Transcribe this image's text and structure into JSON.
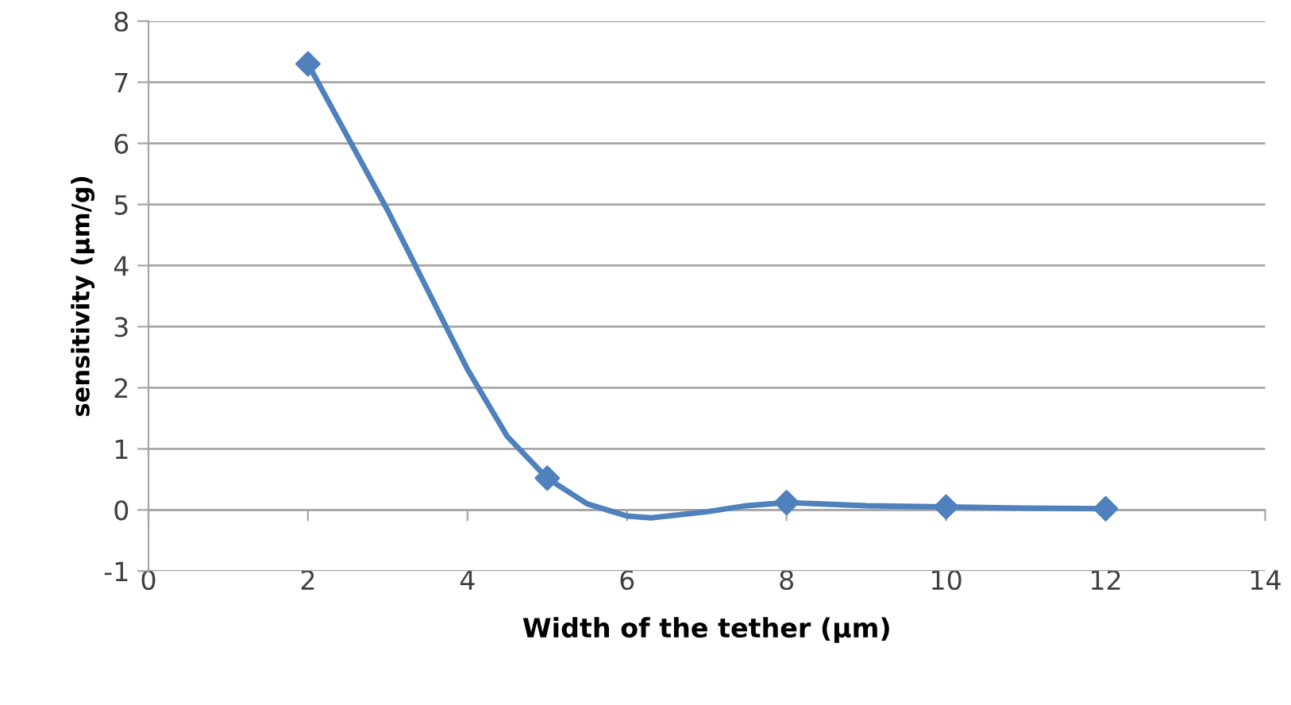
{
  "chart_data": {
    "type": "line",
    "xlabel": "Width of the tether (µm)",
    "ylabel": "sensitivity (µm/g)",
    "series": [
      {
        "color": "#4f81bd",
        "x": [
          2,
          2.5,
          3,
          3.5,
          4,
          4.5,
          5,
          5.5,
          6,
          6.3,
          7,
          7.5,
          8,
          9,
          10,
          11,
          12
        ],
        "values": [
          7.3,
          6.1,
          4.9,
          3.6,
          2.3,
          1.2,
          0.52,
          0.1,
          -0.1,
          -0.13,
          -0.03,
          0.07,
          0.12,
          0.07,
          0.05,
          0.03,
          0.02
        ],
        "marker": "none"
      },
      {
        "type": "scatter",
        "color": "#4f81bd",
        "x": [
          2,
          5,
          8,
          10,
          12
        ],
        "values": [
          7.3,
          0.52,
          0.12,
          0.05,
          0.02
        ],
        "marker": "diamond"
      }
    ],
    "xlim": [
      0,
      14
    ],
    "xticks": [
      0,
      2,
      4,
      6,
      8,
      10,
      12,
      14
    ],
    "ylim": [
      -1,
      8
    ],
    "yticks": [
      -1,
      0,
      1,
      2,
      3,
      4,
      5,
      6,
      7,
      8
    ],
    "grid": "y",
    "line_style": "solid"
  }
}
